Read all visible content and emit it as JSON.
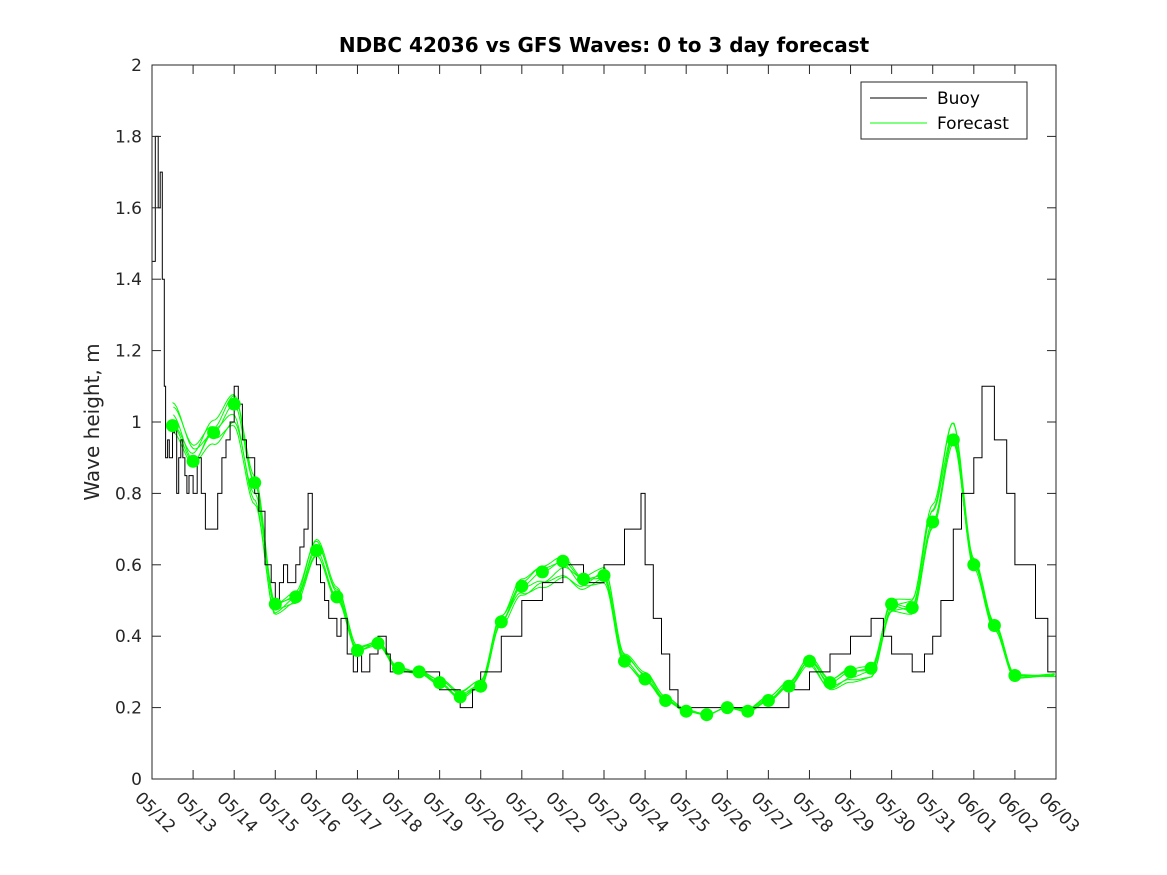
{
  "chart_data": {
    "type": "line",
    "title": "NDBC 42036 vs GFS Waves: 0 to 3 day forecast",
    "xlabel": "",
    "ylabel": "Wave height, m",
    "x_ticks": [
      "05/12",
      "05/13",
      "05/14",
      "05/15",
      "05/16",
      "05/17",
      "05/18",
      "05/19",
      "05/20",
      "05/21",
      "05/22",
      "05/23",
      "05/24",
      "05/25",
      "05/26",
      "05/27",
      "05/28",
      "05/29",
      "05/30",
      "05/31",
      "06/01",
      "06/02",
      "06/03"
    ],
    "y_ticks": [
      "0",
      "0.2",
      "0.4",
      "0.6",
      "0.8",
      "1",
      "1.2",
      "1.4",
      "1.6",
      "1.8",
      "2"
    ],
    "xlim": [
      0,
      22
    ],
    "ylim": [
      0,
      2
    ],
    "grid": false,
    "legend": {
      "placement": "top-right",
      "entries": [
        {
          "label": "Buoy",
          "color": "#000000"
        },
        {
          "label": "Forecast",
          "color": "#00ff00"
        }
      ]
    },
    "series": [
      {
        "name": "Buoy",
        "color": "#000000",
        "x": [
          0,
          0.08,
          0.15,
          0.2,
          0.25,
          0.3,
          0.33,
          0.38,
          0.42,
          0.5,
          0.55,
          0.6,
          0.65,
          0.7,
          0.75,
          0.8,
          0.85,
          0.9,
          1.0,
          1.1,
          1.2,
          1.3,
          1.5,
          1.6,
          1.7,
          1.8,
          1.9,
          2.0,
          2.1,
          2.2,
          2.3,
          2.5,
          2.6,
          2.75,
          2.9,
          3.0,
          3.1,
          3.2,
          3.3,
          3.5,
          3.6,
          3.7,
          3.8,
          3.9,
          4.0,
          4.1,
          4.2,
          4.3,
          4.5,
          4.6,
          4.75,
          4.9,
          5.0,
          5.1,
          5.3,
          5.5,
          5.7,
          5.8,
          6.0,
          6.5,
          7.0,
          7.5,
          7.8,
          8.0,
          8.5,
          9.0,
          9.5,
          10.0,
          10.5,
          11.0,
          11.5,
          11.9,
          12.0,
          12.2,
          12.4,
          12.6,
          12.8,
          13.0,
          13.5,
          14.0,
          14.5,
          15.0,
          15.5,
          16.0,
          16.5,
          17.0,
          17.5,
          17.8,
          18.0,
          18.5,
          18.8,
          19.0,
          19.2,
          19.5,
          19.7,
          20.0,
          20.2,
          20.5,
          20.8,
          21.0,
          21.5,
          21.8,
          22.0
        ],
        "y": [
          1.45,
          1.8,
          1.6,
          1.7,
          1.4,
          1.1,
          0.9,
          0.95,
          0.9,
          0.97,
          1.0,
          0.8,
          0.9,
          0.95,
          0.9,
          0.85,
          0.8,
          0.85,
          0.8,
          0.9,
          0.8,
          0.7,
          0.7,
          0.8,
          0.9,
          0.95,
          1.0,
          1.1,
          1.05,
          0.95,
          0.9,
          0.8,
          0.75,
          0.6,
          0.55,
          0.5,
          0.55,
          0.6,
          0.55,
          0.6,
          0.65,
          0.7,
          0.8,
          0.65,
          0.6,
          0.55,
          0.5,
          0.45,
          0.4,
          0.45,
          0.35,
          0.3,
          0.35,
          0.3,
          0.35,
          0.4,
          0.35,
          0.3,
          0.3,
          0.3,
          0.25,
          0.2,
          0.25,
          0.3,
          0.4,
          0.5,
          0.55,
          0.6,
          0.55,
          0.6,
          0.7,
          0.8,
          0.6,
          0.45,
          0.35,
          0.25,
          0.2,
          0.2,
          0.2,
          0.2,
          0.2,
          0.2,
          0.25,
          0.3,
          0.35,
          0.4,
          0.45,
          0.4,
          0.35,
          0.3,
          0.35,
          0.4,
          0.5,
          0.7,
          0.8,
          0.9,
          1.1,
          0.95,
          0.8,
          0.6,
          0.45,
          0.3,
          0.3
        ]
      },
      {
        "name": "Forecast",
        "color": "#00ff00",
        "marker_points": {
          "x": [
            0.5,
            1.0,
            1.5,
            2.0,
            2.5,
            3.0,
            3.5,
            4.0,
            4.5,
            5.0,
            5.5,
            6.0,
            6.5,
            7.0,
            7.5,
            8.0,
            8.5,
            9.0,
            9.5,
            10.0,
            10.5,
            11.0,
            11.5,
            12.0,
            12.5,
            13.0,
            13.5,
            14.0,
            14.5,
            15.0,
            15.5,
            16.0,
            16.5,
            17.0,
            17.5,
            18.0,
            18.5,
            19.0,
            19.5,
            20.0,
            20.5,
            21.0
          ],
          "y": [
            0.99,
            0.89,
            0.97,
            1.05,
            0.83,
            0.49,
            0.51,
            0.64,
            0.51,
            0.36,
            0.38,
            0.31,
            0.3,
            0.27,
            0.23,
            0.26,
            0.44,
            0.54,
            0.58,
            0.61,
            0.56,
            0.57,
            0.33,
            0.28,
            0.22,
            0.19,
            0.18,
            0.2,
            0.19,
            0.22,
            0.26,
            0.33,
            0.27,
            0.3,
            0.31,
            0.49,
            0.48,
            0.72,
            0.95,
            0.6,
            0.43,
            0.29
          ]
        }
      }
    ]
  }
}
